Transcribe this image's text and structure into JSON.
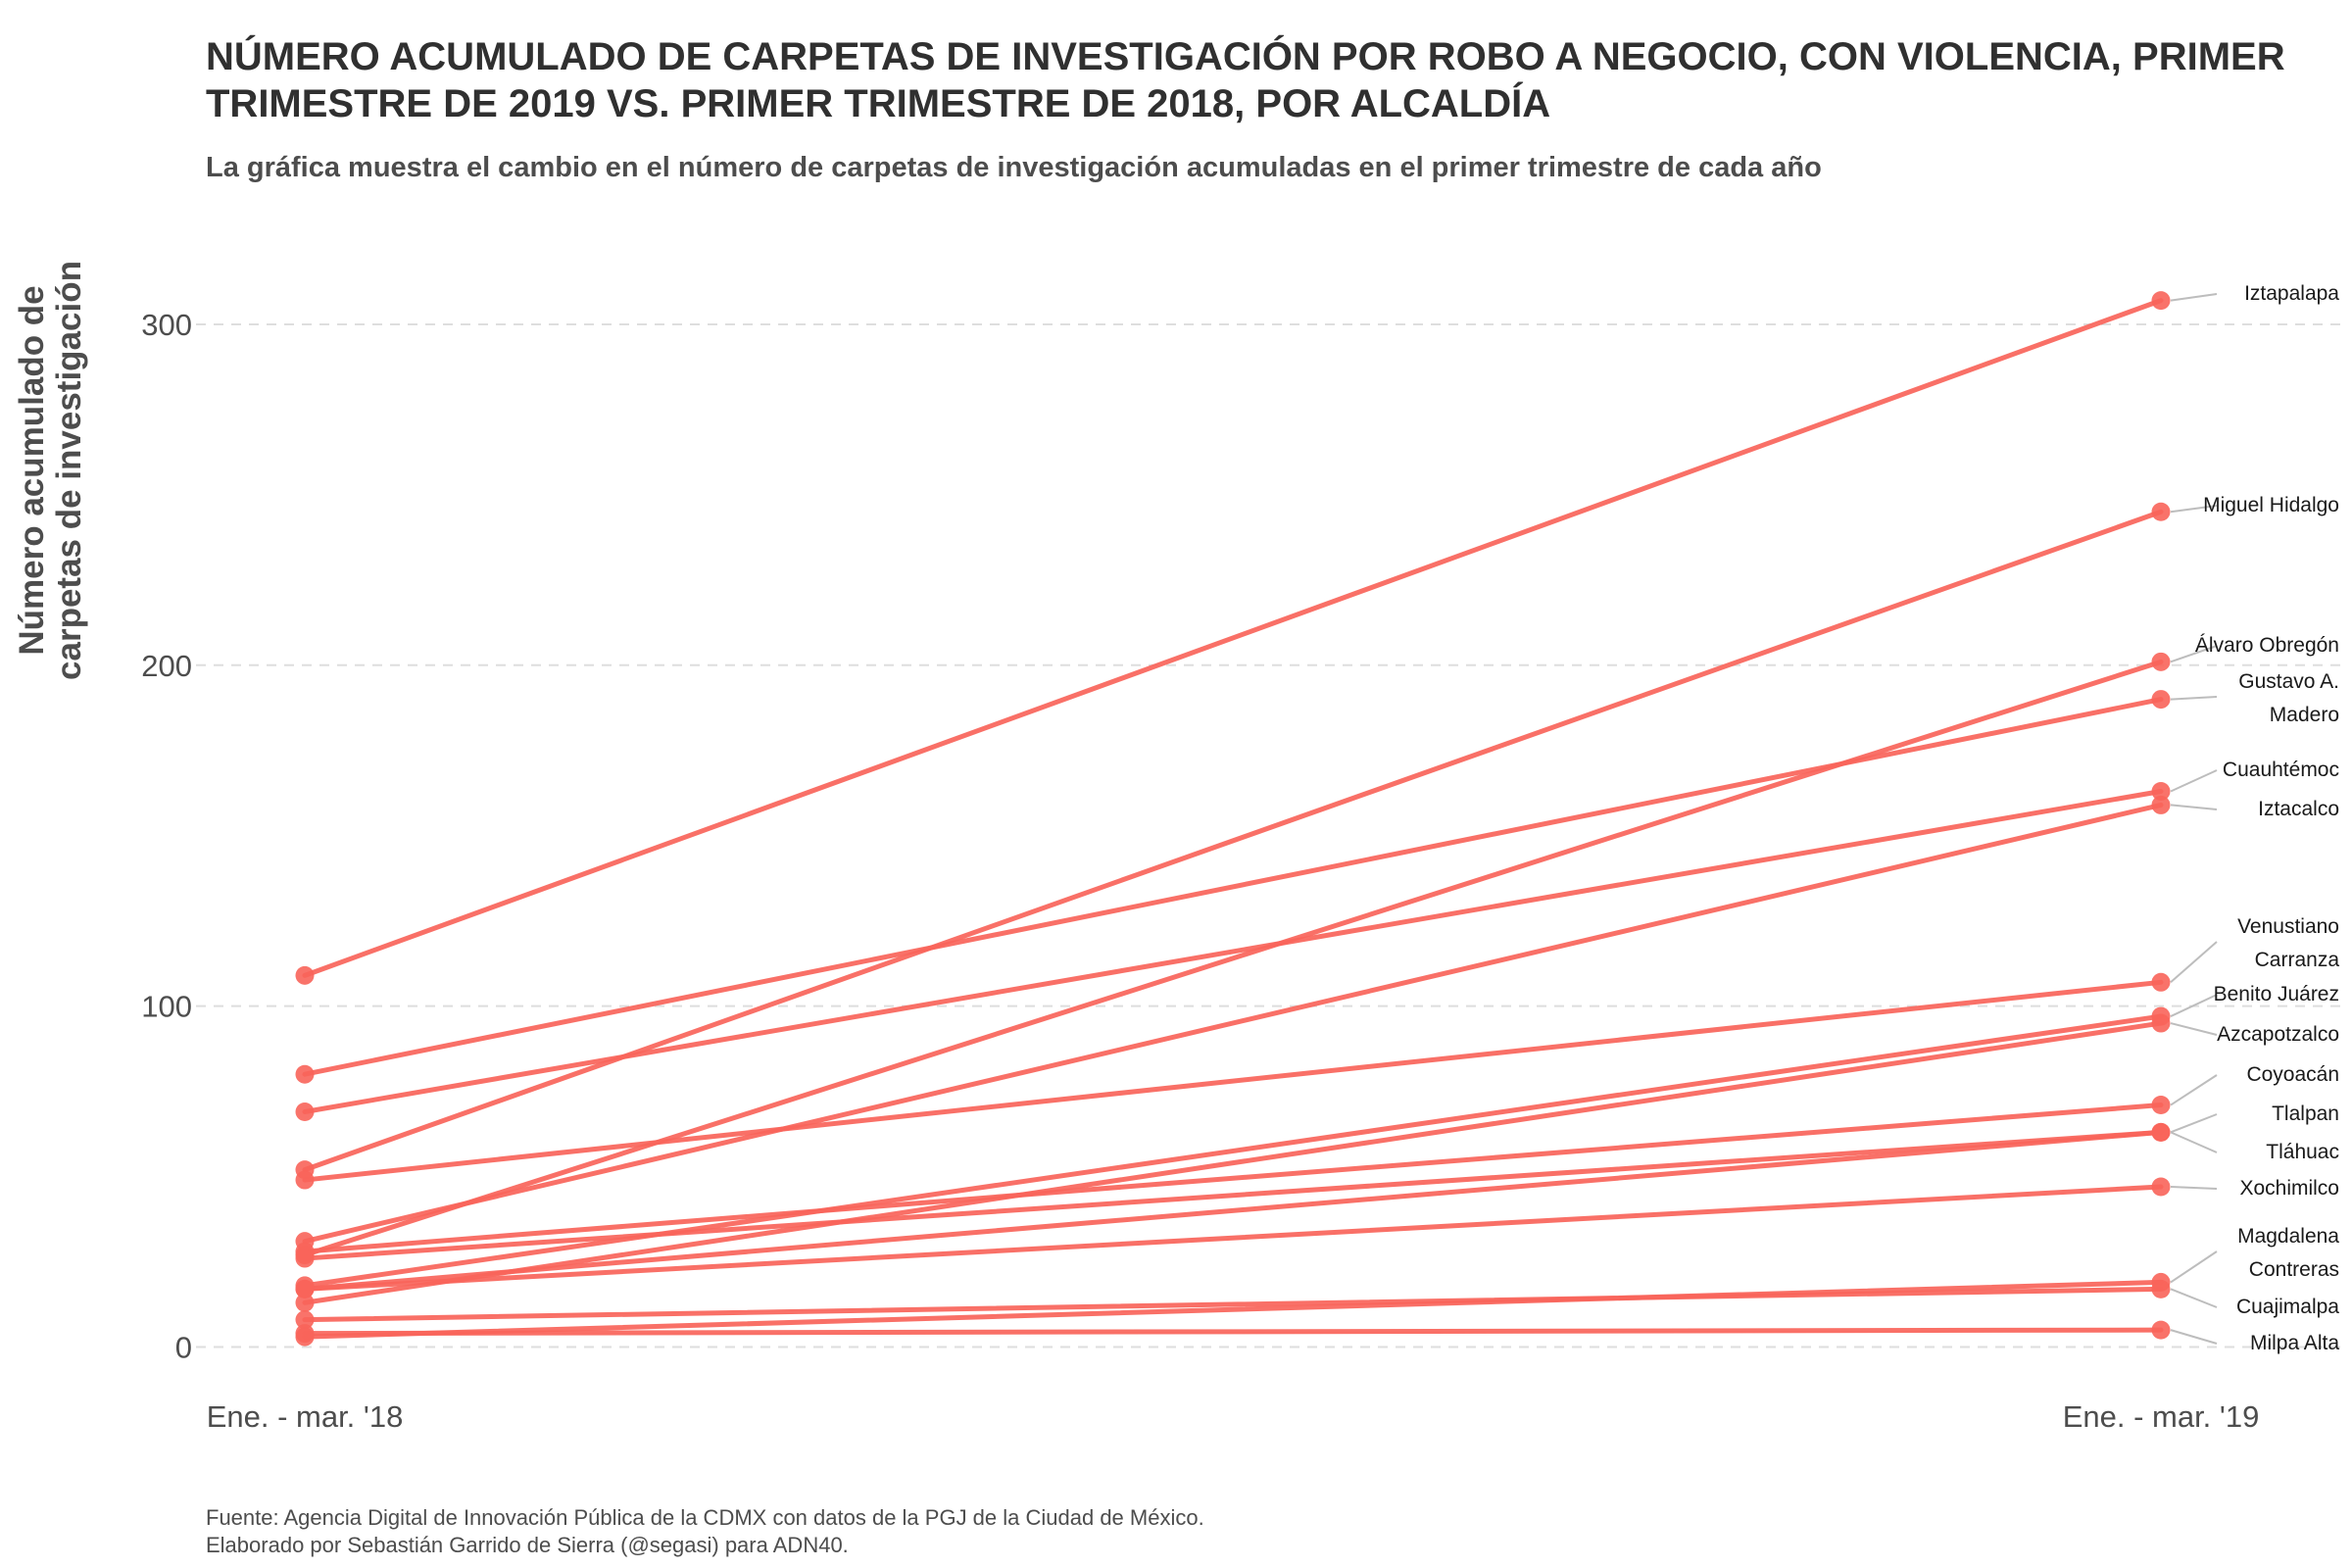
{
  "chart_data": {
    "type": "line",
    "title": "NÚMERO ACUMULADO DE CARPETAS DE INVESTIGACIÓN POR ROBO A NEGOCIO, CON VIOLENCIA, PRIMER TRIMESTRE DE 2019 VS. PRIMER TRIMESTRE DE 2018, POR ALCALDÍA",
    "subtitle": "La gráfica muestra el cambio en el número de carpetas de investigación acumuladas en el primer trimestre de cada año",
    "ylabel_lines": [
      "Número acumulado de",
      "carpetas de investigación"
    ],
    "xlabel": "",
    "categories": [
      "Ene. - mar. '18",
      "Ene. - mar. '19"
    ],
    "ylim": [
      -12,
      320
    ],
    "yticks": [
      0,
      100,
      200,
      300
    ],
    "grid": "horizontal dashed",
    "line_color": "#F8645A",
    "label_line_color": "#BDBDBD",
    "series": [
      {
        "name": "Iztapalapa",
        "label_lines": [
          "Iztapalapa"
        ],
        "values": [
          109,
          307
        ]
      },
      {
        "name": "Miguel Hidalgo",
        "label_lines": [
          "Miguel Hidalgo"
        ],
        "values": [
          52,
          245
        ]
      },
      {
        "name": "Álvaro Obregón",
        "label_lines": [
          "Álvaro Obregón"
        ],
        "values": [
          27,
          201
        ]
      },
      {
        "name": "Gustavo A. Madero",
        "label_lines": [
          "Gustavo A.",
          "Madero"
        ],
        "values": [
          80,
          190
        ]
      },
      {
        "name": "Cuauhtémoc",
        "label_lines": [
          "Cuauhtémoc"
        ],
        "values": [
          69,
          163
        ]
      },
      {
        "name": "Iztacalco",
        "label_lines": [
          "Iztacalco"
        ],
        "values": [
          31,
          159
        ]
      },
      {
        "name": "Venustiano Carranza",
        "label_lines": [
          "Venustiano",
          "Carranza"
        ],
        "values": [
          49,
          107
        ]
      },
      {
        "name": "Benito Juárez",
        "label_lines": [
          "Benito Juárez"
        ],
        "values": [
          18,
          97
        ]
      },
      {
        "name": "Azcapotzalco",
        "label_lines": [
          "Azcapotzalco"
        ],
        "values": [
          13,
          95
        ]
      },
      {
        "name": "Coyoacán",
        "label_lines": [
          "Coyoacán"
        ],
        "values": [
          28,
          71
        ]
      },
      {
        "name": "Tlalpan",
        "label_lines": [
          "Tlalpan"
        ],
        "values": [
          26,
          63
        ]
      },
      {
        "name": "Tláhuac",
        "label_lines": [
          "Tláhuac"
        ],
        "values": [
          17,
          63
        ]
      },
      {
        "name": "Xochimilco",
        "label_lines": [
          "Xochimilco"
        ],
        "values": [
          17,
          47
        ]
      },
      {
        "name": "Magdalena Contreras",
        "label_lines": [
          "Magdalena",
          "Contreras"
        ],
        "values": [
          3,
          19
        ]
      },
      {
        "name": "Cuajimalpa",
        "label_lines": [
          "Cuajimalpa"
        ],
        "values": [
          8,
          17
        ]
      },
      {
        "name": "Milpa Alta",
        "label_lines": [
          "Milpa Alta"
        ],
        "values": [
          4,
          5
        ]
      }
    ]
  },
  "caption_lines": [
    "Fuente: Agencia Digital de Innovación Pública de la CDMX con datos de la PGJ de la Ciudad de México.",
    "Elaborado por Sebastián Garrido de Sierra (@segasi) para ADN40."
  ]
}
